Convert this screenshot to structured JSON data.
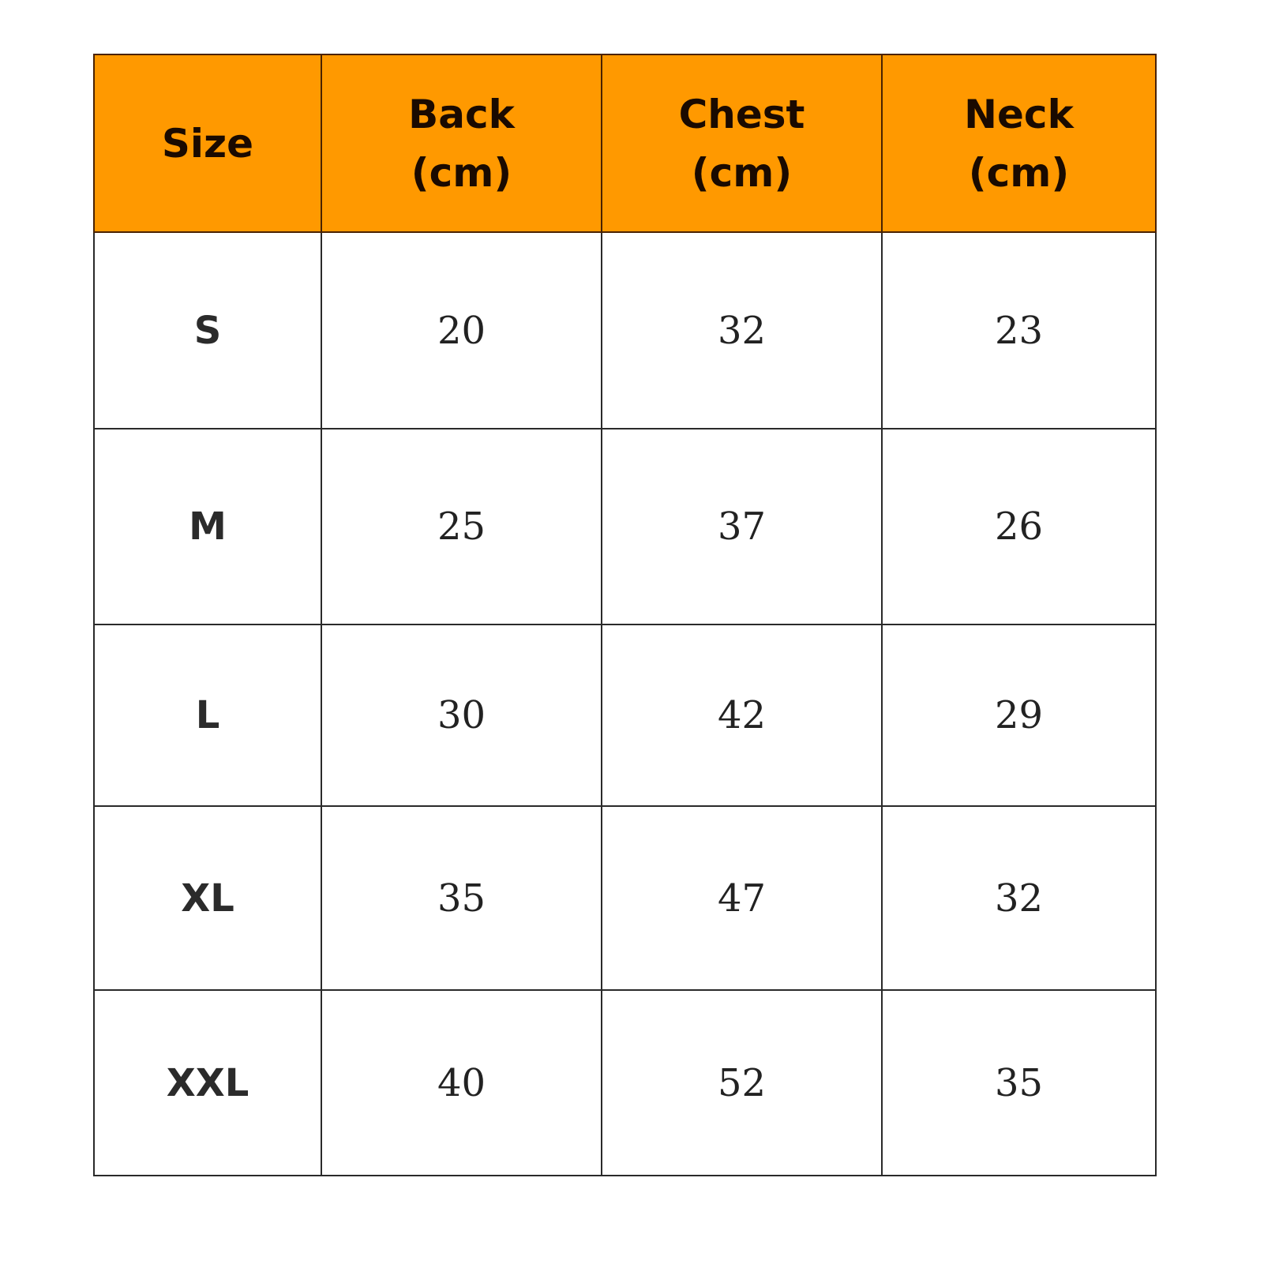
{
  "table": {
    "header_color": "#ff9900",
    "headers": [
      {
        "line1": "Size",
        "line2": ""
      },
      {
        "line1": "Back",
        "line2": "(cm)"
      },
      {
        "line1": "Chest",
        "line2": "(cm)"
      },
      {
        "line1": "Neck",
        "line2": "(cm)"
      }
    ],
    "rows": [
      {
        "size": "S",
        "back": "20",
        "chest": "32",
        "neck": "23"
      },
      {
        "size": "M",
        "back": "25",
        "chest": "37",
        "neck": "26"
      },
      {
        "size": "L",
        "back": "30",
        "chest": "42",
        "neck": "29"
      },
      {
        "size": "XL",
        "back": "35",
        "chest": "47",
        "neck": "32"
      },
      {
        "size": "XXL",
        "back": "40",
        "chest": "52",
        "neck": "35"
      }
    ]
  }
}
